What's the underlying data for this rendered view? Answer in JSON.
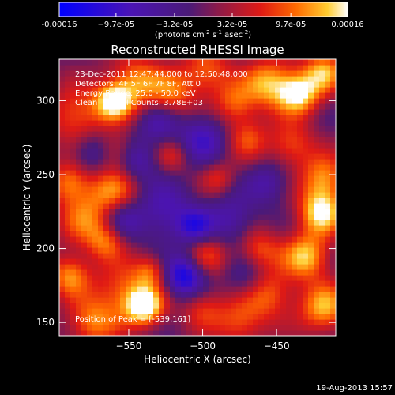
{
  "chart_data": {
    "type": "heatmap",
    "title": "Reconstructed RHESSI Image",
    "xlabel": "Heliocentric X (arcsec)",
    "ylabel": "Heliocentric Y (arcsec)",
    "xlim": [
      -597,
      -410
    ],
    "ylim": [
      141,
      328
    ],
    "x_ticks": [
      -550,
      -500,
      -450
    ],
    "x_tick_labels": [
      "−550",
      "−500",
      "−450"
    ],
    "y_ticks": [
      150,
      200,
      250,
      300
    ],
    "y_tick_labels": [
      "150",
      "200",
      "250",
      "300"
    ],
    "colorbar": {
      "min": -0.00016,
      "max": 0.00016,
      "ticks": [
        -0.00016,
        -9.7e-05,
        -3.2e-05,
        3.2e-05,
        9.7e-05,
        0.00016
      ],
      "tick_labels": [
        "-0.00016",
        "−9.7e-05",
        "−3.2e-05",
        "3.2e-05",
        "9.7e-05",
        "0.00016"
      ],
      "unit_label": "(photons cm",
      "unit_sup1": "-2",
      "unit_mid": " s",
      "unit_sup2": "-1",
      "unit_end": " asec",
      "unit_sup3": "-2",
      "unit_close": ")"
    },
    "annotations": [
      "23-Dec-2011 12:47:44.000 to 12:50:48.000",
      "Detectors: 4F 5F 6F 7F 8F, Att 0",
      "Energy Range: 25.0 - 50.0 keV",
      "Clean     Total Counts: 3.78E+03"
    ],
    "peak_label": "Position of Peak = [-539,161]",
    "peak": [
      -539,
      161
    ],
    "hotspots": [
      {
        "x": -539,
        "y": 161,
        "v": 1.0,
        "s": 9
      },
      {
        "x": -553,
        "y": 171,
        "v": 0.6,
        "s": 14
      },
      {
        "x": -575,
        "y": 150,
        "v": 0.65,
        "s": 12
      },
      {
        "x": -590,
        "y": 182,
        "v": 0.7,
        "s": 10
      },
      {
        "x": -578,
        "y": 220,
        "v": 0.6,
        "s": 14
      },
      {
        "x": -590,
        "y": 245,
        "v": 0.65,
        "s": 10
      },
      {
        "x": -560,
        "y": 240,
        "v": 0.6,
        "s": 12
      },
      {
        "x": -585,
        "y": 290,
        "v": 0.6,
        "s": 14
      },
      {
        "x": -560,
        "y": 300,
        "v": 0.9,
        "s": 9
      },
      {
        "x": -545,
        "y": 313,
        "v": 0.7,
        "s": 13
      },
      {
        "x": -520,
        "y": 305,
        "v": 0.55,
        "s": 11
      },
      {
        "x": -497,
        "y": 320,
        "v": 0.6,
        "s": 12
      },
      {
        "x": -478,
        "y": 298,
        "v": 0.55,
        "s": 10
      },
      {
        "x": -455,
        "y": 312,
        "v": 0.8,
        "s": 12
      },
      {
        "x": -435,
        "y": 305,
        "v": 0.95,
        "s": 10
      },
      {
        "x": -418,
        "y": 320,
        "v": 0.75,
        "s": 10
      },
      {
        "x": -440,
        "y": 270,
        "v": 0.55,
        "s": 11
      },
      {
        "x": -418,
        "y": 248,
        "v": 0.7,
        "s": 11
      },
      {
        "x": -420,
        "y": 225,
        "v": 0.95,
        "s": 11
      },
      {
        "x": -430,
        "y": 195,
        "v": 0.85,
        "s": 11
      },
      {
        "x": -418,
        "y": 160,
        "v": 0.8,
        "s": 12
      },
      {
        "x": -455,
        "y": 170,
        "v": 0.6,
        "s": 12
      },
      {
        "x": -462,
        "y": 200,
        "v": 0.55,
        "s": 10
      },
      {
        "x": -470,
        "y": 275,
        "v": 0.5,
        "s": 10
      },
      {
        "x": -497,
        "y": 195,
        "v": 0.5,
        "s": 10
      },
      {
        "x": -475,
        "y": 150,
        "v": 0.55,
        "s": 12
      },
      {
        "x": -500,
        "y": 160,
        "v": 0.45,
        "s": 10
      },
      {
        "x": -558,
        "y": 266,
        "v": 0.45,
        "s": 9
      },
      {
        "x": -520,
        "y": 263,
        "v": 0.4,
        "s": 8
      },
      {
        "x": -490,
        "y": 248,
        "v": 0.4,
        "s": 8
      },
      {
        "x": -565,
        "y": 205,
        "v": 0.5,
        "s": 9
      },
      {
        "x": -535,
        "y": 185,
        "v": 0.5,
        "s": 8
      },
      {
        "x": -512,
        "y": 182,
        "v": -0.9,
        "s": 10
      },
      {
        "x": -525,
        "y": 225,
        "v": -0.5,
        "s": 14
      },
      {
        "x": -555,
        "y": 220,
        "v": -0.5,
        "s": 10
      },
      {
        "x": -500,
        "y": 275,
        "v": -0.55,
        "s": 12
      },
      {
        "x": -545,
        "y": 260,
        "v": -0.5,
        "s": 10
      },
      {
        "x": -480,
        "y": 220,
        "v": -0.45,
        "s": 12
      },
      {
        "x": -575,
        "y": 265,
        "v": -0.45,
        "s": 10
      },
      {
        "x": -455,
        "y": 245,
        "v": -0.4,
        "s": 10
      },
      {
        "x": -505,
        "y": 215,
        "v": -0.55,
        "s": 8
      },
      {
        "x": -530,
        "y": 285,
        "v": -0.4,
        "s": 10
      },
      {
        "x": -470,
        "y": 180,
        "v": -0.35,
        "s": 10
      }
    ]
  },
  "footer": {
    "date": "19-Aug-2013 15:57"
  }
}
